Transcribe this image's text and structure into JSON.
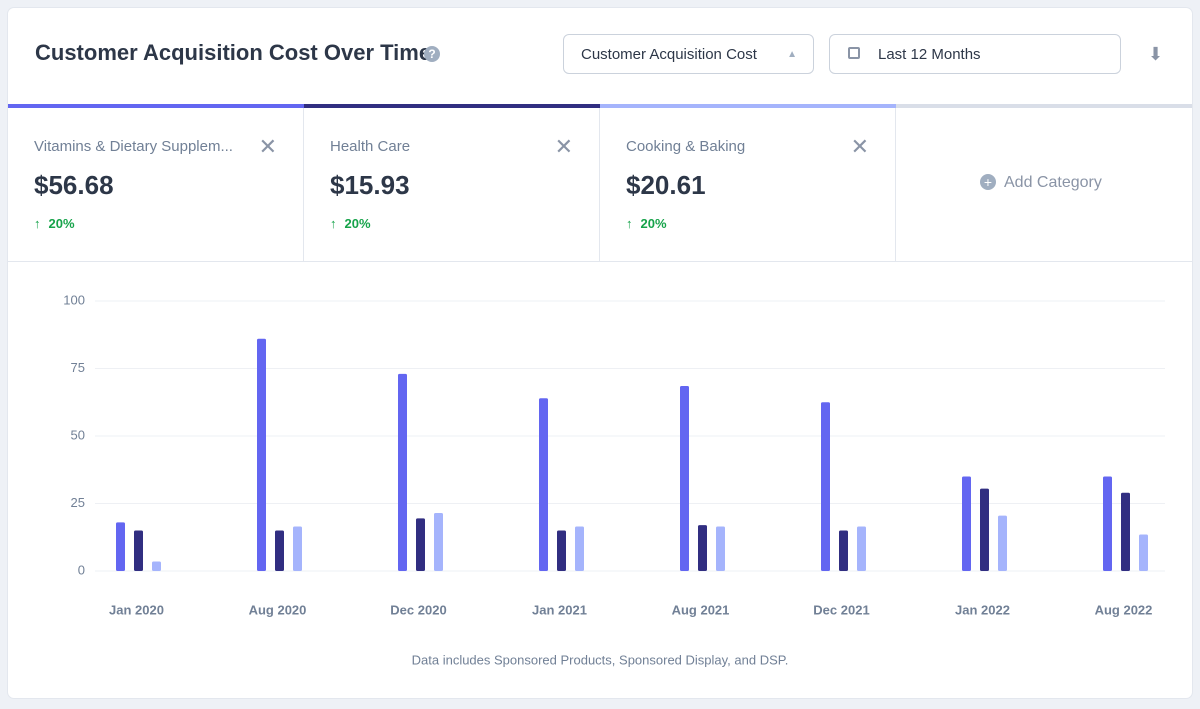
{
  "header": {
    "title": "Customer Acquisition Cost Over Time",
    "metric": "Customer Acquisition Cost",
    "range": "Last 12 Months"
  },
  "cards": [
    {
      "value": "$56.68",
      "change": "20%"
    },
    {
      "value": "$15.93",
      "change": "20%"
    },
    {
      "value": "$20.61",
      "change": "20%"
    }
  ],
  "add_category": "Add Category",
  "footnote": "Data includes Sponsored Products, Sponsored Display, and DSP.",
  "chart_data": {
    "type": "bar",
    "categories": [
      "Jan 2020",
      "Aug 2020",
      "Dec 2020",
      "Jan 2021",
      "Aug 2021",
      "Dec 2021",
      "Jan 2022",
      "Aug 2022"
    ],
    "series": [
      {
        "name": "Vitamins & Dietary Supplem...",
        "color": "#6366f1",
        "values": [
          18,
          86,
          73,
          64,
          68.5,
          62.5,
          35,
          35
        ]
      },
      {
        "name": "Health Care",
        "color": "#312e81",
        "values": [
          15,
          15,
          19.5,
          15,
          17,
          15,
          30.5,
          29
        ]
      },
      {
        "name": "Cooking & Baking",
        "color": "#a5b4fc",
        "values": [
          3.5,
          16.5,
          21.5,
          16.5,
          16.5,
          16.5,
          20.5,
          13.5
        ]
      }
    ],
    "ylim": [
      0,
      100
    ],
    "yticks": [
      0,
      25,
      50,
      75,
      100
    ],
    "grid": true
  }
}
